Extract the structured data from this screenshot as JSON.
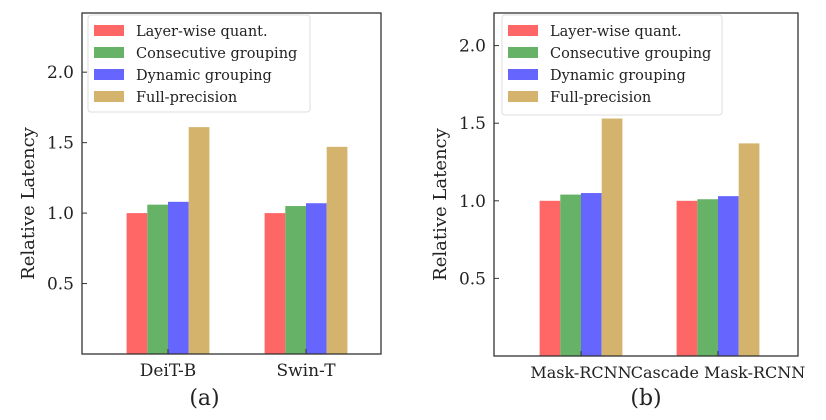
{
  "chart_data": [
    {
      "type": "bar",
      "subtitle": "(a)",
      "ylabel": "Relative Latency",
      "categories": [
        "DeiT-B",
        "Swin-T"
      ],
      "yticks": [
        "0.5",
        "1.0",
        "1.5",
        "2.0"
      ],
      "ylim": [
        0,
        2.42
      ],
      "legend_position": "top-left",
      "series": [
        {
          "name": "Layer-wise quant.",
          "color": "#ff6666",
          "values": [
            1.0,
            1.0
          ]
        },
        {
          "name": "Consecutive grouping",
          "color": "#66b266",
          "values": [
            1.06,
            1.05
          ]
        },
        {
          "name": "Dynamic grouping",
          "color": "#6666ff",
          "values": [
            1.08,
            1.07
          ]
        },
        {
          "name": "Full-precision",
          "color": "#d4b46c",
          "values": [
            1.61,
            1.47
          ]
        }
      ]
    },
    {
      "type": "bar",
      "subtitle": "(b)",
      "ylabel": "Relative Latency",
      "categories": [
        "Mask-RCNN",
        "Cascade Mask-RCNN"
      ],
      "yticks": [
        "0.5",
        "1.0",
        "1.5",
        "2.0"
      ],
      "ylim": [
        0,
        2.21
      ],
      "legend_position": "top-left",
      "series": [
        {
          "name": "Layer-wise quant.",
          "color": "#ff6666",
          "values": [
            1.0,
            1.0
          ]
        },
        {
          "name": "Consecutive grouping",
          "color": "#66b266",
          "values": [
            1.04,
            1.01
          ]
        },
        {
          "name": "Dynamic grouping",
          "color": "#6666ff",
          "values": [
            1.05,
            1.03
          ]
        },
        {
          "name": "Full-precision",
          "color": "#d4b46c",
          "values": [
            1.53,
            1.37
          ]
        }
      ]
    }
  ]
}
